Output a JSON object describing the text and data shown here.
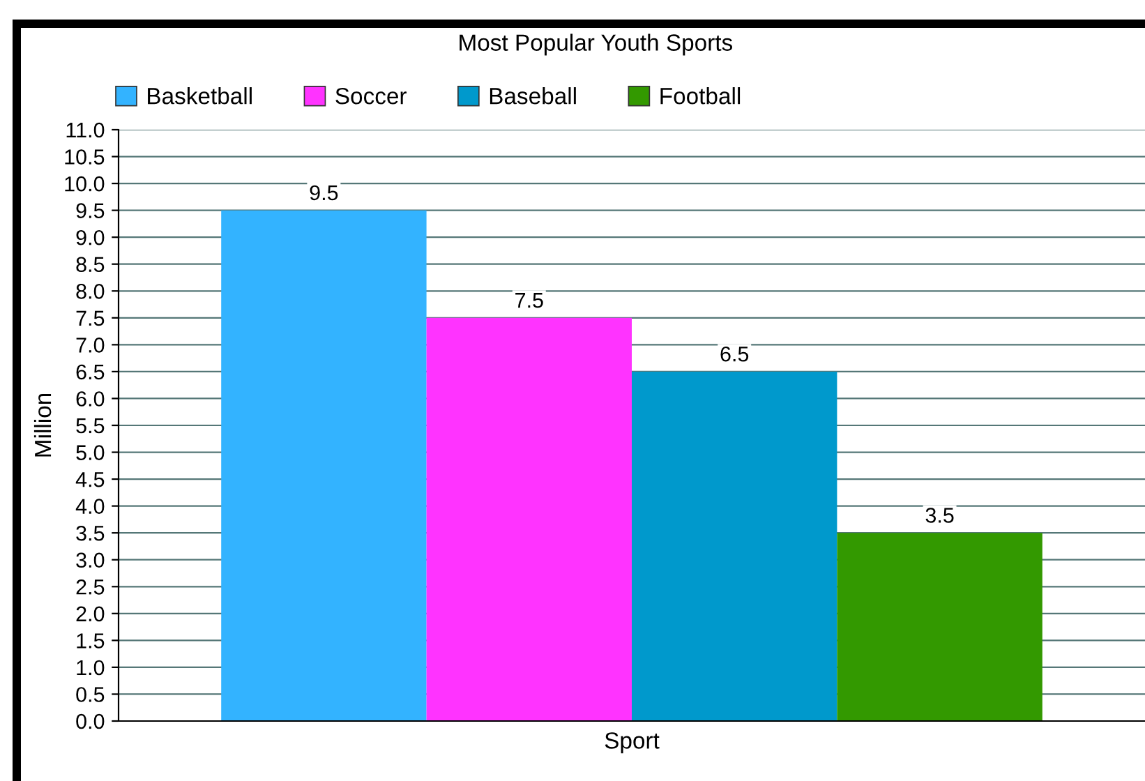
{
  "chart_data": {
    "type": "bar",
    "title": "Most Popular Youth Sports",
    "xlabel": "Sport",
    "ylabel": "Million",
    "categories": [
      null
    ],
    "series": [
      {
        "name": "Basketball",
        "color": "#33b3ff",
        "values": [
          9.5
        ]
      },
      {
        "name": "Soccer",
        "color": "#ff33ff",
        "values": [
          7.5
        ]
      },
      {
        "name": "Baseball",
        "color": "#0099cc",
        "values": [
          6.5
        ]
      },
      {
        "name": "Football",
        "color": "#339900",
        "values": [
          3.5
        ]
      }
    ],
    "ylim": [
      0,
      11
    ],
    "yticks": [
      {
        "value": 0,
        "label": "0.0"
      },
      {
        "value": 0.5,
        "label": "0.5"
      },
      {
        "value": 1,
        "label": "1.0"
      },
      {
        "value": 1.5,
        "label": "1.5"
      },
      {
        "value": 2,
        "label": "2.0"
      },
      {
        "value": 2.5,
        "label": "2.5"
      },
      {
        "value": 3,
        "label": "3.0"
      },
      {
        "value": 3.5,
        "label": "3.5"
      },
      {
        "value": 4,
        "label": "4.0"
      },
      {
        "value": 4.5,
        "label": "4.5"
      },
      {
        "value": 5,
        "label": "5.0"
      },
      {
        "value": 5.5,
        "label": "5.5"
      },
      {
        "value": 6,
        "label": "6.0"
      },
      {
        "value": 6.5,
        "label": "6.5"
      },
      {
        "value": 7,
        "label": "7.0"
      },
      {
        "value": 7.5,
        "label": "7.5"
      },
      {
        "value": 8,
        "label": "8.0"
      },
      {
        "value": 8.5,
        "label": "8.5"
      },
      {
        "value": 9,
        "label": "9.0"
      },
      {
        "value": 9.5,
        "label": "9.5"
      },
      {
        "value": 10,
        "label": "10.0"
      },
      {
        "value": 10.5,
        "label": "10.5"
      },
      {
        "value": 11,
        "label": "11.0"
      }
    ],
    "grid": "y",
    "legend": "top left",
    "data_labels": true
  }
}
